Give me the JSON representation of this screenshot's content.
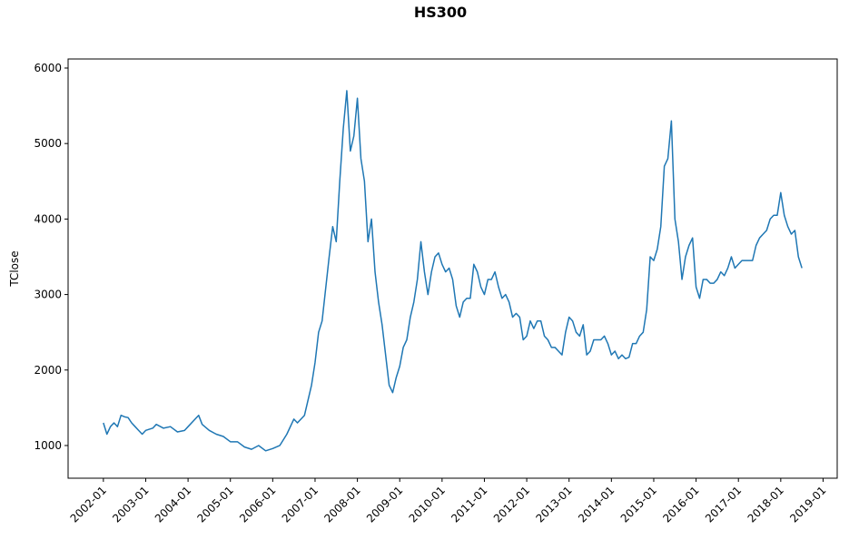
{
  "chart_data": {
    "type": "line",
    "title": "HS300",
    "y_label": "TClose",
    "color": "#1f77b4",
    "x": [
      "2002-01",
      "2002-02",
      "2002-03",
      "2002-04",
      "2002-05",
      "2002-06",
      "2002-07",
      "2002-08",
      "2002-09",
      "2002-10",
      "2002-11",
      "2002-12",
      "2003-01",
      "2003-03",
      "2003-04",
      "2003-06",
      "2003-08",
      "2003-10",
      "2003-12",
      "2004-01",
      "2004-03",
      "2004-04",
      "2004-05",
      "2004-07",
      "2004-09",
      "2004-11",
      "2005-01",
      "2005-03",
      "2005-05",
      "2005-07",
      "2005-09",
      "2005-11",
      "2006-01",
      "2006-03",
      "2006-05",
      "2006-07",
      "2006-08",
      "2006-10",
      "2006-12",
      "2007-01",
      "2007-02",
      "2007-03",
      "2007-05",
      "2007-06",
      "2007-07",
      "2007-08",
      "2007-09",
      "2007-10",
      "2007-11",
      "2007-12",
      "2008-01",
      "2008-02",
      "2008-03",
      "2008-04",
      "2008-05",
      "2008-06",
      "2008-07",
      "2008-08",
      "2008-09",
      "2008-10",
      "2008-11",
      "2008-12",
      "2009-01",
      "2009-02",
      "2009-03",
      "2009-04",
      "2009-05",
      "2009-06",
      "2009-07",
      "2009-08",
      "2009-09",
      "2009-10",
      "2009-11",
      "2009-12",
      "2010-01",
      "2010-02",
      "2010-03",
      "2010-04",
      "2010-05",
      "2010-06",
      "2010-07",
      "2010-08",
      "2010-09",
      "2010-10",
      "2010-11",
      "2010-12",
      "2011-01",
      "2011-02",
      "2011-03",
      "2011-04",
      "2011-05",
      "2011-06",
      "2011-07",
      "2011-08",
      "2011-09",
      "2011-10",
      "2011-11",
      "2011-12",
      "2012-01",
      "2012-02",
      "2012-03",
      "2012-04",
      "2012-05",
      "2012-06",
      "2012-07",
      "2012-08",
      "2012-09",
      "2012-10",
      "2012-11",
      "2012-12",
      "2013-01",
      "2013-02",
      "2013-03",
      "2013-04",
      "2013-05",
      "2013-06",
      "2013-07",
      "2013-08",
      "2013-09",
      "2013-10",
      "2013-11",
      "2013-12",
      "2014-01",
      "2014-02",
      "2014-03",
      "2014-04",
      "2014-05",
      "2014-06",
      "2014-07",
      "2014-08",
      "2014-09",
      "2014-10",
      "2014-11",
      "2014-12",
      "2015-01",
      "2015-02",
      "2015-03",
      "2015-04",
      "2015-05",
      "2015-06",
      "2015-07",
      "2015-08",
      "2015-09",
      "2015-10",
      "2015-11",
      "2015-12",
      "2016-01",
      "2016-02",
      "2016-03",
      "2016-04",
      "2016-05",
      "2016-06",
      "2016-07",
      "2016-08",
      "2016-09",
      "2016-10",
      "2016-11",
      "2016-12",
      "2017-01",
      "2017-02",
      "2017-03",
      "2017-04",
      "2017-05",
      "2017-06",
      "2017-07",
      "2017-08",
      "2017-09",
      "2017-10",
      "2017-11",
      "2017-12",
      "2018-01",
      "2018-02",
      "2018-03",
      "2018-04",
      "2018-05",
      "2018-06",
      "2018-07"
    ],
    "values": [
      1300,
      1150,
      1250,
      1300,
      1250,
      1400,
      1380,
      1370,
      1300,
      1250,
      1200,
      1150,
      1200,
      1230,
      1280,
      1230,
      1250,
      1180,
      1200,
      1250,
      1350,
      1400,
      1280,
      1200,
      1150,
      1120,
      1050,
      1050,
      980,
      950,
      1000,
      930,
      960,
      1000,
      1150,
      1350,
      1300,
      1400,
      1800,
      2100,
      2500,
      2650,
      3500,
      3900,
      3700,
      4500,
      5200,
      5700,
      4900,
      5100,
      5600,
      4800,
      4500,
      3700,
      4000,
      3300,
      2900,
      2600,
      2200,
      1800,
      1700,
      1900,
      2050,
      2300,
      2400,
      2700,
      2900,
      3200,
      3700,
      3300,
      3000,
      3300,
      3500,
      3550,
      3400,
      3300,
      3350,
      3200,
      2850,
      2700,
      2900,
      2950,
      2950,
      3400,
      3300,
      3100,
      3000,
      3200,
      3200,
      3300,
      3100,
      2950,
      3000,
      2900,
      2700,
      2750,
      2700,
      2400,
      2450,
      2650,
      2550,
      2650,
      2650,
      2450,
      2400,
      2300,
      2300,
      2250,
      2200,
      2500,
      2700,
      2650,
      2500,
      2450,
      2600,
      2200,
      2250,
      2400,
      2400,
      2400,
      2450,
      2350,
      2200,
      2250,
      2150,
      2200,
      2150,
      2170,
      2350,
      2350,
      2450,
      2500,
      2800,
      3500,
      3450,
      3600,
      3900,
      4700,
      4800,
      5300,
      4000,
      3700,
      3200,
      3500,
      3650,
      3750,
      3100,
      2950,
      3200,
      3200,
      3150,
      3150,
      3200,
      3300,
      3250,
      3350,
      3500,
      3350,
      3400,
      3450,
      3450,
      3450,
      3450,
      3650,
      3750,
      3800,
      3850,
      4000,
      4050,
      4050,
      4350,
      4050,
      3900,
      3800,
      3850,
      3500,
      3350
    ],
    "xlim": [
      "2001-03",
      "2019-05"
    ],
    "xticks": [
      "2002-01",
      "2003-01",
      "2004-01",
      "2005-01",
      "2006-01",
      "2007-01",
      "2008-01",
      "2009-01",
      "2010-01",
      "2011-01",
      "2012-01",
      "2013-01",
      "2014-01",
      "2015-01",
      "2016-01",
      "2017-01",
      "2018-01",
      "2019-01"
    ],
    "ylim": [
      567,
      6120
    ],
    "yticks": [
      1000,
      2000,
      3000,
      4000,
      5000,
      6000
    ]
  }
}
